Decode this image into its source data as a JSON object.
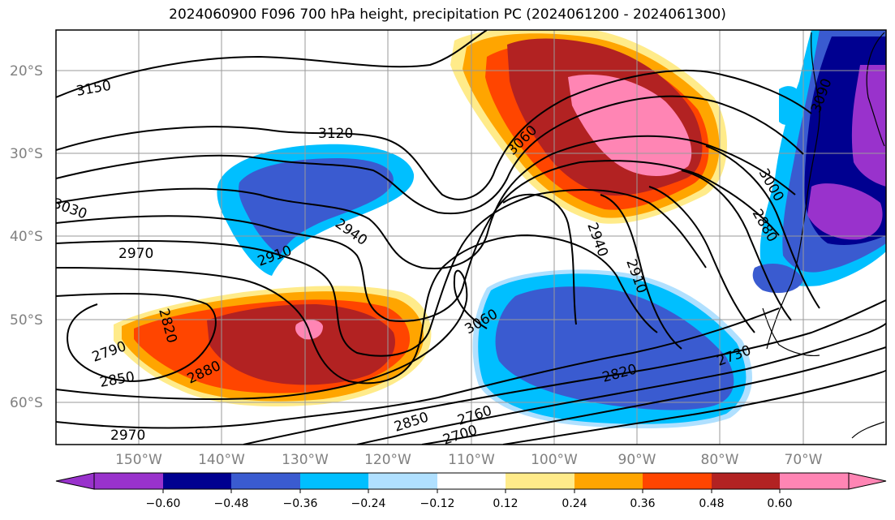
{
  "title": "2024060900 F096 700 hPa height, precipitation PC (2024061200 - 2024061300)",
  "map": {
    "lat_labels": [
      "20°S",
      "30°S",
      "40°S",
      "50°S",
      "60°S"
    ],
    "lon_labels": [
      "150°W",
      "140°W",
      "130°W",
      "120°W",
      "110°W",
      "100°W",
      "90°W",
      "80°W",
      "70°W"
    ],
    "contour_labels": [
      "3150",
      "3120",
      "3060",
      "3030",
      "2970",
      "2940",
      "2910",
      "3060",
      "3000",
      "2880",
      "2940",
      "2910",
      "2820",
      "2790",
      "2850",
      "2880",
      "3060",
      "2820",
      "2730",
      "2850",
      "2760",
      "2700",
      "2970",
      "3090"
    ],
    "shading_colors": {
      "strong_negative": "#000090",
      "negative": "#3a5bd0",
      "weak_negative": "#00bfff",
      "near_zero_negative": "#b0e0ff",
      "weak_positive": "#ffa500",
      "positive": "#ff4500",
      "strong_positive": "#b22222",
      "max_positive": "#ff85b4",
      "min_negative": "#9932cc"
    }
  },
  "colorbar": {
    "colors": [
      "#9932cc",
      "#000090",
      "#3a5bd0",
      "#00bfff",
      "#b0e0ff",
      "#ffffff",
      "#ffeb8a",
      "#ffa500",
      "#ff4500",
      "#b22222",
      "#ff85b4"
    ],
    "ticks": [
      "−0.60",
      "−0.48",
      "−0.36",
      "−0.24",
      "−0.12",
      "0.12",
      "0.24",
      "0.36",
      "0.48",
      "0.60"
    ]
  }
}
